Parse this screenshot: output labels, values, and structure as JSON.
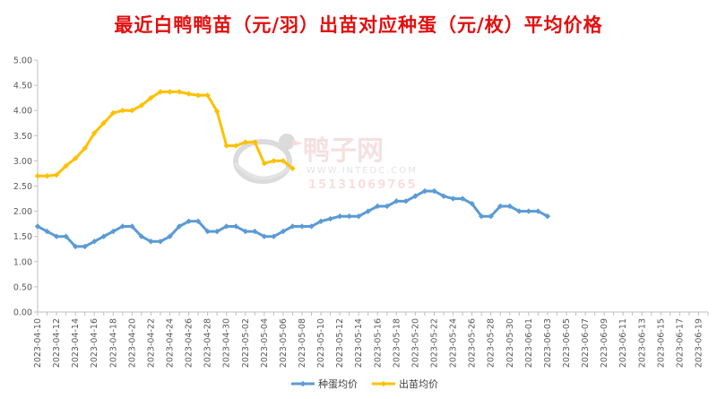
{
  "chart_data": {
    "type": "line",
    "title": "最近白鸭鸭苗（元/羽）出苗对应种蛋（元/枚）平均价格",
    "xlabel": "",
    "ylabel": "",
    "ylim": [
      0,
      5
    ],
    "yticks": [
      "0.00",
      "0.50",
      "1.00",
      "1.50",
      "2.00",
      "2.50",
      "3.00",
      "3.50",
      "4.00",
      "4.50",
      "5.00"
    ],
    "xlim": [
      "2023-04-10",
      "2023-06-20"
    ],
    "xticks": [
      "2023-04-10",
      "2023-04-12",
      "2023-04-14",
      "2023-04-16",
      "2023-04-18",
      "2023-04-20",
      "2023-04-22",
      "2023-04-24",
      "2023-04-26",
      "2023-04-28",
      "2023-04-30",
      "2023-05-02",
      "2023-05-04",
      "2023-05-06",
      "2023-05-08",
      "2023-05-10",
      "2023-05-12",
      "2023-05-14",
      "2023-05-16",
      "2023-05-18",
      "2023-05-20",
      "2023-05-22",
      "2023-05-24",
      "2023-05-26",
      "2023-05-28",
      "2023-05-30",
      "2023-06-01",
      "2023-06-03",
      "2023-06-05",
      "2023-06-07",
      "2023-06-09",
      "2023-06-11",
      "2023-06-13",
      "2023-06-15",
      "2023-06-17",
      "2023-06-19"
    ],
    "grid": false,
    "legend_position": "bottom",
    "series": [
      {
        "name": "种蛋均价",
        "color": "#5b9bd5",
        "x": [
          "2023-04-10",
          "2023-04-11",
          "2023-04-12",
          "2023-04-13",
          "2023-04-14",
          "2023-04-15",
          "2023-04-16",
          "2023-04-17",
          "2023-04-18",
          "2023-04-19",
          "2023-04-20",
          "2023-04-21",
          "2023-04-22",
          "2023-04-23",
          "2023-04-24",
          "2023-04-25",
          "2023-04-26",
          "2023-04-27",
          "2023-04-28",
          "2023-04-29",
          "2023-04-30",
          "2023-05-01",
          "2023-05-02",
          "2023-05-03",
          "2023-05-04",
          "2023-05-05",
          "2023-05-06",
          "2023-05-07",
          "2023-05-08",
          "2023-05-09",
          "2023-05-10",
          "2023-05-11",
          "2023-05-12",
          "2023-05-13",
          "2023-05-14",
          "2023-05-15",
          "2023-05-16",
          "2023-05-17",
          "2023-05-18",
          "2023-05-19",
          "2023-05-20",
          "2023-05-21",
          "2023-05-22",
          "2023-05-23",
          "2023-05-24",
          "2023-05-25",
          "2023-05-26",
          "2023-05-27",
          "2023-05-28",
          "2023-05-29",
          "2023-05-30",
          "2023-05-31",
          "2023-06-01",
          "2023-06-02",
          "2023-06-03"
        ],
        "values": [
          1.7,
          1.6,
          1.5,
          1.5,
          1.3,
          1.3,
          1.4,
          1.5,
          1.6,
          1.7,
          1.7,
          1.5,
          1.4,
          1.4,
          1.5,
          1.7,
          1.8,
          1.8,
          1.6,
          1.6,
          1.7,
          1.7,
          1.6,
          1.6,
          1.5,
          1.5,
          1.6,
          1.7,
          1.7,
          1.7,
          1.8,
          1.85,
          1.9,
          1.9,
          1.9,
          2.0,
          2.1,
          2.1,
          2.2,
          2.2,
          2.3,
          2.4,
          2.4,
          2.3,
          2.25,
          2.25,
          2.15,
          1.9,
          1.9,
          2.1,
          2.1,
          2.0,
          2.0,
          2.0,
          1.9
        ]
      },
      {
        "name": "出苗均价",
        "color": "#ffc000",
        "x": [
          "2023-04-10",
          "2023-04-11",
          "2023-04-12",
          "2023-04-13",
          "2023-04-14",
          "2023-04-15",
          "2023-04-16",
          "2023-04-17",
          "2023-04-18",
          "2023-04-19",
          "2023-04-20",
          "2023-04-21",
          "2023-04-22",
          "2023-04-23",
          "2023-04-24",
          "2023-04-25",
          "2023-04-26",
          "2023-04-27",
          "2023-04-28",
          "2023-04-29",
          "2023-04-30",
          "2023-05-01",
          "2023-05-02",
          "2023-05-03",
          "2023-05-04",
          "2023-05-05",
          "2023-05-06",
          "2023-05-07"
        ],
        "values": [
          2.7,
          2.7,
          2.72,
          2.9,
          3.05,
          3.25,
          3.55,
          3.75,
          3.95,
          4.0,
          4.0,
          4.1,
          4.25,
          4.37,
          4.37,
          4.37,
          4.33,
          4.3,
          4.3,
          3.98,
          3.3,
          3.3,
          3.37,
          3.37,
          2.95,
          3.0,
          3.0,
          2.85
        ]
      }
    ]
  },
  "watermark": {
    "brand": "鸭子网",
    "site": "WWW.INTEDC.COM",
    "phone": "15131069765"
  }
}
